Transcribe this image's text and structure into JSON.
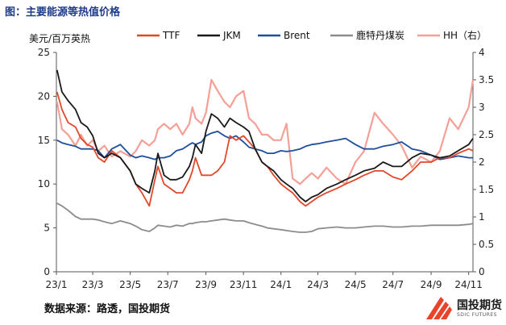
{
  "header": {
    "title": "图：主要能源等热值价格"
  },
  "footer": {
    "source": "数据来源：路透，国投期货"
  },
  "brand": {
    "name": "国投期货",
    "sub": "SDIC FUTURES",
    "color": "#e8442c"
  },
  "chart_data": {
    "type": "line",
    "title": "",
    "ylabel_left": "美元/百万英热",
    "ylim_left": [
      0,
      25
    ],
    "yticks_left": [
      "0",
      "5",
      "10",
      "15",
      "20",
      "25"
    ],
    "ylim_right": [
      0,
      4
    ],
    "yticks_right": [
      "0",
      "0.5",
      "1",
      "1.5",
      "2",
      "2.5",
      "3",
      "3.5",
      "4"
    ],
    "xlim": [
      "2023-01-01",
      "2024-11-08"
    ],
    "xticks": [
      {
        "date": "2023-01-01",
        "label": "23/1"
      },
      {
        "date": "2023-03-01",
        "label": "23/3"
      },
      {
        "date": "2023-05-01",
        "label": "23/5"
      },
      {
        "date": "2023-07-01",
        "label": "23/7"
      },
      {
        "date": "2023-09-01",
        "label": "23/9"
      },
      {
        "date": "2023-11-01",
        "label": "23/11"
      },
      {
        "date": "2024-01-01",
        "label": "24/1"
      },
      {
        "date": "2024-03-01",
        "label": "24/3"
      },
      {
        "date": "2024-05-01",
        "label": "24/5"
      },
      {
        "date": "2024-07-01",
        "label": "24/7"
      },
      {
        "date": "2024-09-01",
        "label": "24/9"
      },
      {
        "date": "2024-11-01",
        "label": "24/11"
      }
    ],
    "legend_position": "top",
    "grid": false,
    "series": [
      {
        "name": "TTF",
        "axis": "left",
        "color": "#e2472a",
        "width": 1.8,
        "x": [
          "2023-01-02",
          "2023-01-10",
          "2023-01-20",
          "2023-02-01",
          "2023-02-10",
          "2023-02-20",
          "2023-03-01",
          "2023-03-10",
          "2023-03-20",
          "2023-04-01",
          "2023-04-15",
          "2023-05-01",
          "2023-05-10",
          "2023-05-20",
          "2023-06-01",
          "2023-06-10",
          "2023-06-15",
          "2023-06-25",
          "2023-07-05",
          "2023-07-15",
          "2023-07-25",
          "2023-08-05",
          "2023-08-10",
          "2023-08-15",
          "2023-08-25",
          "2023-09-01",
          "2023-09-10",
          "2023-09-20",
          "2023-10-01",
          "2023-10-10",
          "2023-10-20",
          "2023-11-01",
          "2023-11-10",
          "2023-11-20",
          "2023-12-01",
          "2023-12-10",
          "2023-12-20",
          "2024-01-01",
          "2024-01-10",
          "2024-01-20",
          "2024-02-01",
          "2024-02-10",
          "2024-02-20",
          "2024-03-01",
          "2024-03-15",
          "2024-04-01",
          "2024-04-15",
          "2024-05-01",
          "2024-05-15",
          "2024-06-01",
          "2024-06-15",
          "2024-07-01",
          "2024-07-15",
          "2024-08-01",
          "2024-08-15",
          "2024-09-01",
          "2024-09-15",
          "2024-10-01",
          "2024-10-15",
          "2024-11-01",
          "2024-11-08"
        ],
        "y": [
          20.5,
          18.5,
          17.0,
          16.5,
          15.2,
          14.5,
          14.2,
          13.0,
          12.5,
          13.8,
          13.0,
          11.5,
          10.0,
          9.0,
          7.5,
          10.5,
          12.0,
          10.0,
          9.5,
          9.0,
          9.0,
          10.5,
          11.5,
          13.0,
          11.0,
          11.0,
          11.0,
          11.5,
          12.5,
          15.5,
          15.0,
          15.5,
          14.8,
          14.0,
          12.5,
          12.0,
          11.0,
          10.0,
          9.5,
          9.0,
          8.0,
          7.5,
          8.0,
          8.5,
          9.0,
          9.5,
          10.0,
          10.5,
          11.0,
          11.5,
          11.5,
          10.8,
          10.5,
          11.5,
          12.5,
          12.5,
          13.0,
          13.0,
          13.5,
          14.0,
          13.8
        ]
      },
      {
        "name": "JKM",
        "axis": "left",
        "color": "#1a1a1a",
        "width": 1.8,
        "x": [
          "2023-01-02",
          "2023-01-10",
          "2023-01-20",
          "2023-02-01",
          "2023-02-10",
          "2023-02-20",
          "2023-03-01",
          "2023-03-10",
          "2023-03-20",
          "2023-04-01",
          "2023-04-15",
          "2023-05-01",
          "2023-05-10",
          "2023-05-20",
          "2023-06-01",
          "2023-06-10",
          "2023-06-15",
          "2023-06-25",
          "2023-07-05",
          "2023-07-15",
          "2023-07-25",
          "2023-08-05",
          "2023-08-10",
          "2023-08-15",
          "2023-08-25",
          "2023-09-01",
          "2023-09-10",
          "2023-09-20",
          "2023-10-01",
          "2023-10-10",
          "2023-10-20",
          "2023-11-01",
          "2023-11-10",
          "2023-11-20",
          "2023-12-01",
          "2023-12-10",
          "2023-12-20",
          "2024-01-01",
          "2024-01-10",
          "2024-01-20",
          "2024-02-01",
          "2024-02-10",
          "2024-02-20",
          "2024-03-01",
          "2024-03-15",
          "2024-04-01",
          "2024-04-15",
          "2024-05-01",
          "2024-05-15",
          "2024-06-01",
          "2024-06-15",
          "2024-07-01",
          "2024-07-15",
          "2024-08-01",
          "2024-08-15",
          "2024-09-01",
          "2024-09-15",
          "2024-10-01",
          "2024-10-15",
          "2024-11-01",
          "2024-11-08"
        ],
        "y": [
          23.0,
          20.5,
          19.5,
          18.5,
          17.0,
          16.5,
          15.5,
          13.5,
          13.0,
          13.5,
          13.0,
          11.5,
          10.0,
          9.5,
          9.0,
          11.5,
          13.5,
          11.0,
          10.5,
          10.5,
          10.8,
          12.0,
          13.0,
          14.5,
          13.5,
          16.0,
          18.0,
          17.5,
          16.5,
          17.5,
          17.0,
          16.5,
          16.0,
          14.0,
          12.5,
          12.0,
          11.5,
          10.5,
          10.0,
          9.5,
          8.5,
          8.0,
          8.5,
          8.8,
          9.5,
          10.0,
          10.5,
          11.0,
          11.5,
          11.8,
          12.5,
          12.0,
          12.0,
          13.0,
          13.5,
          13.3,
          13.0,
          13.2,
          13.8,
          14.5,
          15.2
        ]
      },
      {
        "name": "Brent",
        "axis": "left",
        "color": "#1f4e9c",
        "width": 1.8,
        "x": [
          "2023-01-02",
          "2023-01-10",
          "2023-01-20",
          "2023-02-01",
          "2023-02-10",
          "2023-02-20",
          "2023-03-01",
          "2023-03-10",
          "2023-03-20",
          "2023-04-01",
          "2023-04-15",
          "2023-05-01",
          "2023-05-10",
          "2023-05-20",
          "2023-06-01",
          "2023-06-10",
          "2023-06-15",
          "2023-06-25",
          "2023-07-05",
          "2023-07-15",
          "2023-07-25",
          "2023-08-05",
          "2023-08-10",
          "2023-08-15",
          "2023-08-25",
          "2023-09-01",
          "2023-09-10",
          "2023-09-20",
          "2023-10-01",
          "2023-10-10",
          "2023-10-20",
          "2023-11-01",
          "2023-11-10",
          "2023-11-20",
          "2023-12-01",
          "2023-12-10",
          "2023-12-20",
          "2024-01-01",
          "2024-01-10",
          "2024-01-20",
          "2024-02-01",
          "2024-02-10",
          "2024-02-20",
          "2024-03-01",
          "2024-03-15",
          "2024-04-01",
          "2024-04-15",
          "2024-05-01",
          "2024-05-15",
          "2024-06-01",
          "2024-06-15",
          "2024-07-01",
          "2024-07-15",
          "2024-08-01",
          "2024-08-15",
          "2024-09-01",
          "2024-09-15",
          "2024-10-01",
          "2024-10-15",
          "2024-11-01",
          "2024-11-08"
        ],
        "y": [
          15.0,
          14.7,
          14.5,
          14.3,
          14.0,
          14.0,
          14.0,
          13.8,
          13.0,
          14.0,
          14.5,
          13.3,
          13.0,
          13.2,
          13.0,
          12.8,
          13.0,
          13.0,
          13.2,
          13.8,
          14.0,
          14.5,
          14.7,
          14.5,
          14.8,
          15.5,
          15.8,
          16.0,
          15.5,
          15.2,
          15.5,
          14.8,
          14.2,
          14.0,
          13.8,
          13.5,
          13.5,
          13.8,
          13.7,
          13.8,
          14.0,
          14.3,
          14.5,
          14.6,
          14.8,
          15.0,
          15.2,
          14.5,
          14.0,
          14.0,
          14.3,
          14.5,
          14.8,
          14.0,
          13.8,
          13.3,
          12.8,
          13.0,
          13.2,
          13.0,
          13.0
        ]
      },
      {
        "name": "鹿特丹煤炭",
        "axis": "left",
        "color": "#8c8c8c",
        "width": 1.8,
        "x": [
          "2023-01-02",
          "2023-01-10",
          "2023-01-20",
          "2023-02-01",
          "2023-02-10",
          "2023-02-20",
          "2023-03-01",
          "2023-03-10",
          "2023-03-20",
          "2023-04-01",
          "2023-04-15",
          "2023-05-01",
          "2023-05-10",
          "2023-05-20",
          "2023-06-01",
          "2023-06-10",
          "2023-06-15",
          "2023-06-25",
          "2023-07-05",
          "2023-07-15",
          "2023-07-25",
          "2023-08-05",
          "2023-08-10",
          "2023-08-15",
          "2023-08-25",
          "2023-09-01",
          "2023-09-10",
          "2023-09-20",
          "2023-10-01",
          "2023-10-10",
          "2023-10-20",
          "2023-11-01",
          "2023-11-10",
          "2023-11-20",
          "2023-12-01",
          "2023-12-10",
          "2023-12-20",
          "2024-01-01",
          "2024-01-10",
          "2024-01-20",
          "2024-02-01",
          "2024-02-10",
          "2024-02-20",
          "2024-03-01",
          "2024-03-15",
          "2024-04-01",
          "2024-04-15",
          "2024-05-01",
          "2024-05-15",
          "2024-06-01",
          "2024-06-15",
          "2024-07-01",
          "2024-07-15",
          "2024-08-01",
          "2024-08-15",
          "2024-09-01",
          "2024-09-15",
          "2024-10-01",
          "2024-10-15",
          "2024-11-01",
          "2024-11-08"
        ],
        "y": [
          7.8,
          7.5,
          7.0,
          6.3,
          6.0,
          6.0,
          6.0,
          5.9,
          5.7,
          5.5,
          5.8,
          5.5,
          5.2,
          4.8,
          4.6,
          5.0,
          5.3,
          5.2,
          5.1,
          5.3,
          5.2,
          5.5,
          5.5,
          5.6,
          5.7,
          5.7,
          5.8,
          5.9,
          6.0,
          5.9,
          5.8,
          5.8,
          5.6,
          5.4,
          5.2,
          5.0,
          4.9,
          4.8,
          4.7,
          4.6,
          4.5,
          4.5,
          4.6,
          4.9,
          5.0,
          5.1,
          5.0,
          5.0,
          5.1,
          5.2,
          5.2,
          5.1,
          5.1,
          5.2,
          5.2,
          5.3,
          5.3,
          5.3,
          5.3,
          5.4,
          5.5
        ]
      },
      {
        "name": "HH（右）",
        "axis": "right",
        "color": "#f4a096",
        "width": 2.2,
        "x": [
          "2023-01-02",
          "2023-01-10",
          "2023-01-20",
          "2023-02-01",
          "2023-02-10",
          "2023-02-20",
          "2023-03-01",
          "2023-03-10",
          "2023-03-20",
          "2023-04-01",
          "2023-04-15",
          "2023-05-01",
          "2023-05-10",
          "2023-05-20",
          "2023-06-01",
          "2023-06-10",
          "2023-06-15",
          "2023-06-25",
          "2023-07-05",
          "2023-07-15",
          "2023-07-25",
          "2023-08-05",
          "2023-08-10",
          "2023-08-15",
          "2023-08-25",
          "2023-09-01",
          "2023-09-10",
          "2023-09-20",
          "2023-10-01",
          "2023-10-10",
          "2023-10-20",
          "2023-11-01",
          "2023-11-10",
          "2023-11-20",
          "2023-12-01",
          "2023-12-10",
          "2023-12-20",
          "2024-01-01",
          "2024-01-10",
          "2024-01-20",
          "2024-02-01",
          "2024-02-10",
          "2024-02-20",
          "2024-03-01",
          "2024-03-15",
          "2024-04-01",
          "2024-04-15",
          "2024-05-01",
          "2024-05-15",
          "2024-06-01",
          "2024-06-15",
          "2024-07-01",
          "2024-07-15",
          "2024-08-01",
          "2024-08-15",
          "2024-09-01",
          "2024-09-15",
          "2024-10-01",
          "2024-10-15",
          "2024-11-01",
          "2024-11-08"
        ],
        "y": [
          3.1,
          2.6,
          2.5,
          2.3,
          2.5,
          2.3,
          2.4,
          2.2,
          2.3,
          2.1,
          2.2,
          2.1,
          2.2,
          2.4,
          2.3,
          2.4,
          2.6,
          2.7,
          2.6,
          2.7,
          2.5,
          2.7,
          3.0,
          2.8,
          2.7,
          2.9,
          3.5,
          3.3,
          3.1,
          3.0,
          3.2,
          3.3,
          2.8,
          2.7,
          2.5,
          2.5,
          2.4,
          2.4,
          2.7,
          1.7,
          1.6,
          1.7,
          1.8,
          1.7,
          1.9,
          1.7,
          1.6,
          2.0,
          2.2,
          2.9,
          2.7,
          2.5,
          2.3,
          1.9,
          2.1,
          2.0,
          2.2,
          2.8,
          2.6,
          3.0,
          3.5
        ]
      }
    ]
  }
}
